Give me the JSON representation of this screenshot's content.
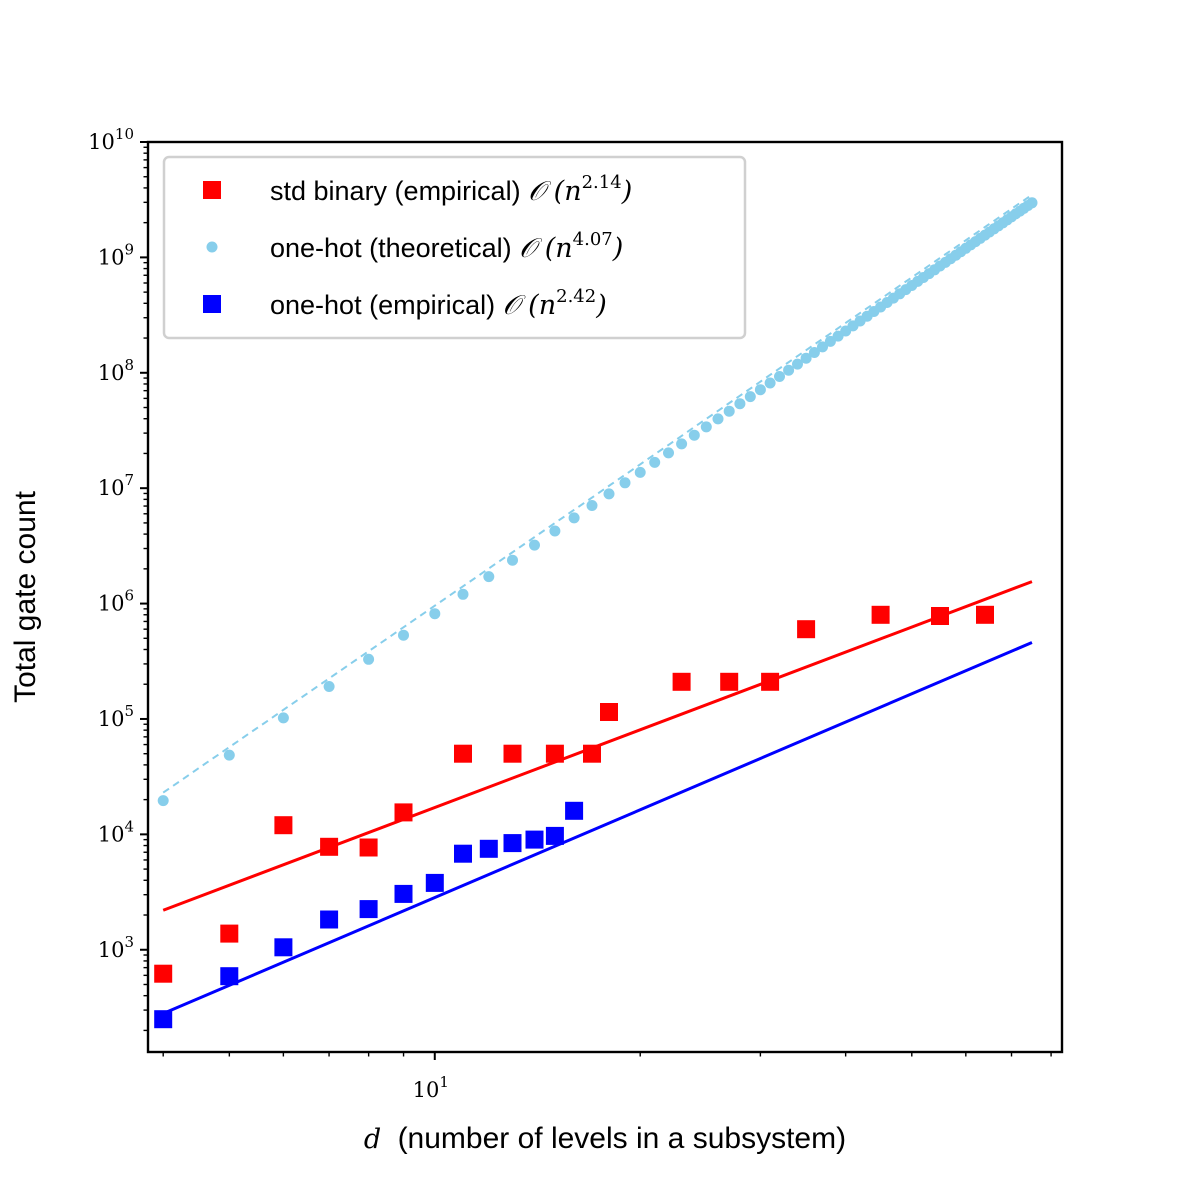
{
  "chart_data": {
    "type": "scatter",
    "xscale": "log",
    "yscale": "log",
    "xlim": [
      3.8,
      83
    ],
    "ylim": [
      130,
      10000000000
    ],
    "xlabel": {
      "var": "d",
      "text": "(number of levels in a subsystem)"
    },
    "ylabel": "Total gate count",
    "x_ticks": [
      {
        "base": "10",
        "exp": "1",
        "value": 10
      }
    ],
    "y_ticks": [
      {
        "base": "10",
        "exp": "3",
        "value": 1000
      },
      {
        "base": "10",
        "exp": "4",
        "value": 10000
      },
      {
        "base": "10",
        "exp": "5",
        "value": 100000
      },
      {
        "base": "10",
        "exp": "6",
        "value": 1000000
      },
      {
        "base": "10",
        "exp": "7",
        "value": 10000000
      },
      {
        "base": "10",
        "exp": "8",
        "value": 100000000
      },
      {
        "base": "10",
        "exp": "9",
        "value": 1000000000
      },
      {
        "base": "10",
        "exp": "10",
        "value": 10000000000
      }
    ],
    "grid": false,
    "legend": {
      "position": "top-left",
      "entries": [
        {
          "label": "std binary (empirical)",
          "formula": "𝒪",
          "var": "n",
          "exp": "2.14",
          "marker": "square",
          "color": "#ff0000"
        },
        {
          "label": "one-hot (theoretical)",
          "formula": "𝒪",
          "var": "n",
          "exp": "4.07",
          "marker": "circle",
          "color": "#87ceeb"
        },
        {
          "label": "one-hot (empirical)",
          "formula": "𝒪",
          "var": "n",
          "exp": "2.42",
          "marker": "square",
          "color": "#0000ff"
        }
      ]
    },
    "series": [
      {
        "name": "std binary (empirical)",
        "color": "#ff0000",
        "marker": "square",
        "points": [
          [
            4,
            620
          ],
          [
            5,
            1380
          ],
          [
            6,
            12000
          ],
          [
            7,
            7800
          ],
          [
            8,
            7700
          ],
          [
            9,
            15500
          ],
          [
            11,
            50000
          ],
          [
            13,
            50000
          ],
          [
            15,
            50000
          ],
          [
            17,
            50000
          ],
          [
            18,
            115000
          ],
          [
            23,
            210000
          ],
          [
            27,
            210000
          ],
          [
            31,
            210000
          ],
          [
            35,
            600000
          ],
          [
            45,
            800000
          ],
          [
            55,
            780000
          ],
          [
            64,
            800000
          ]
        ],
        "fit": {
          "x": [
            4,
            75
          ],
          "y": [
            2200,
            1550000
          ]
        }
      },
      {
        "name": "one-hot (theoretical)",
        "color": "#87ceeb",
        "marker": "circle",
        "formula": {
          "coef": 19600,
          "ref_x": 4,
          "exponent": 4.07,
          "x_start": 4,
          "x_end": 75
        },
        "fit_dashed": {
          "coef": 23000,
          "ref_x": 4,
          "exponent": 4.07
        }
      },
      {
        "name": "one-hot (empirical)",
        "color": "#0000ff",
        "marker": "square",
        "points": [
          [
            4,
            250
          ],
          [
            5,
            590
          ],
          [
            6,
            1050
          ],
          [
            7,
            1830
          ],
          [
            8,
            2250
          ],
          [
            9,
            3050
          ],
          [
            10,
            3800
          ],
          [
            11,
            6800
          ],
          [
            12,
            7500
          ],
          [
            13,
            8400
          ],
          [
            14,
            9000
          ],
          [
            15,
            9700
          ],
          [
            16,
            16000
          ]
        ],
        "fit": {
          "x": [
            4,
            75
          ],
          "y": [
            280,
            460000
          ]
        }
      }
    ]
  }
}
